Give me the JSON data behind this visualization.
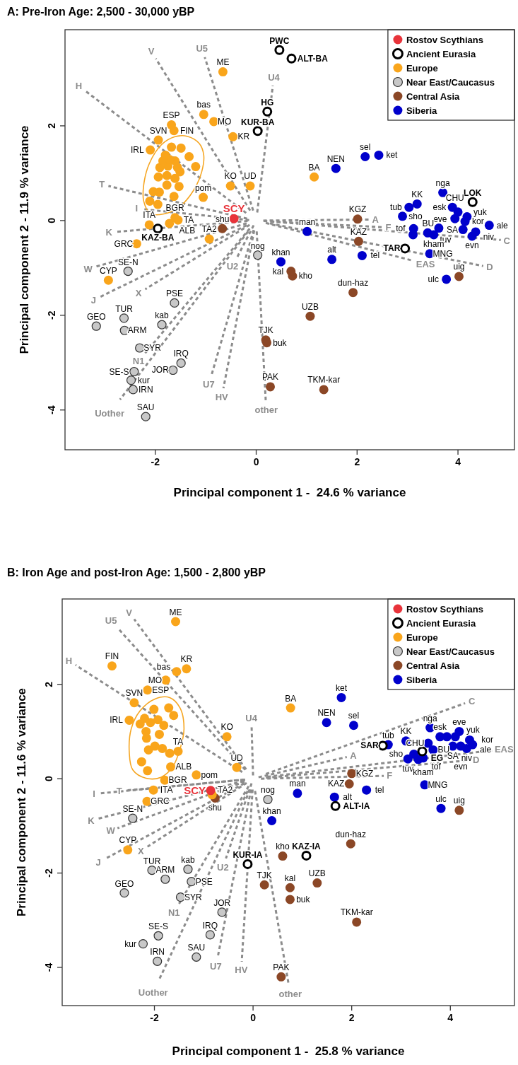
{
  "chart_data": [
    {
      "type": "scatter",
      "title": "A: Pre-Iron Age: 2,500 - 30,000 yBP",
      "xlabel": "Principal component 1 -  24.6 % variance",
      "ylabel": "Principal component 2 - 11.9 % variance",
      "xlim": [
        -3.79,
        5.12
      ],
      "ylim": [
        -4.84,
        4.03
      ],
      "xticks": [
        -2,
        0,
        2,
        4
      ],
      "yticks": [
        -4,
        -2,
        0,
        2
      ],
      "legend": "top right",
      "marker": "circle",
      "series": [
        {
          "type": "line",
          "marker": "none",
          "line_style": "dashed",
          "color": "#8c8c8c",
          "x": [
            -0.2,
            -3.39
          ],
          "values": [
            0.16,
            2.74
          ],
          "value_labels": [
            null,
            "H"
          ]
        },
        {
          "type": "line",
          "marker": "none",
          "line_style": "dashed",
          "color": "#8c8c8c",
          "x": [
            -0.12,
            -1.99
          ],
          "values": [
            0.21,
            3.42
          ],
          "value_labels": [
            null,
            "V"
          ]
        },
        {
          "type": "line",
          "marker": "none",
          "line_style": "dashed",
          "color": "#8c8c8c",
          "x": [
            -0.06,
            -1.02
          ],
          "values": [
            0.21,
            3.45
          ],
          "value_labels": [
            null,
            "U5"
          ]
        },
        {
          "type": "line",
          "marker": "none",
          "line_style": "dashed",
          "color": "#8c8c8c",
          "x": [
            0.02,
            0.33
          ],
          "values": [
            0.17,
            2.85
          ],
          "value_labels": [
            null,
            "U4"
          ]
        },
        {
          "type": "line",
          "marker": "none",
          "line_style": "dashed",
          "color": "#8c8c8c",
          "x": [
            -0.18,
            -2.93
          ],
          "values": [
            0.04,
            0.73
          ],
          "value_labels": [
            null,
            "T"
          ]
        },
        {
          "type": "line",
          "marker": "none",
          "line_style": "dashed",
          "color": "#8c8c8c",
          "x": [
            -0.14,
            -2.25
          ],
          "values": [
            0.01,
            0.24
          ],
          "value_labels": [
            null,
            "I"
          ]
        },
        {
          "type": "line",
          "marker": "none",
          "line_style": "dashed",
          "color": "#8c8c8c",
          "x": [
            -0.17,
            -2.8
          ],
          "values": [
            -0.01,
            -0.24
          ],
          "value_labels": [
            null,
            "K"
          ]
        },
        {
          "type": "line",
          "marker": "none",
          "line_style": "dashed",
          "color": "#8c8c8c",
          "x": [
            -0.19,
            -3.2
          ],
          "values": [
            -0.06,
            -0.98
          ],
          "value_labels": [
            null,
            "W"
          ]
        },
        {
          "type": "line",
          "marker": "none",
          "line_style": "dashed",
          "color": "#8c8c8c",
          "x": [
            -0.19,
            -3.09
          ],
          "values": [
            -0.1,
            -1.61
          ],
          "value_labels": [
            null,
            "J"
          ]
        },
        {
          "type": "line",
          "marker": "none",
          "line_style": "dashed",
          "color": "#8c8c8c",
          "x": [
            -0.13,
            -2.2
          ],
          "values": [
            -0.09,
            -1.45
          ],
          "value_labels": [
            null,
            "X"
          ]
        },
        {
          "type": "line",
          "marker": "none",
          "line_style": "dashed",
          "color": "#8c8c8c",
          "x": [
            -0.13,
            -2.2
          ],
          "values": [
            -0.17,
            -2.8
          ],
          "value_labels": [
            null,
            "N1"
          ]
        },
        {
          "type": "line",
          "marker": "none",
          "line_style": "dashed",
          "color": "#8c8c8c",
          "x": [
            -0.16,
            -2.7
          ],
          "values": [
            -0.23,
            -3.78
          ],
          "value_labels": [
            null,
            "Uother"
          ]
        },
        {
          "type": "line",
          "marker": "none",
          "line_style": "dashed",
          "color": "#8c8c8c",
          "x": [
            -0.05,
            -0.38
          ],
          "values": [
            -0.1,
            -0.78
          ],
          "value_labels": [
            null,
            "U2"
          ]
        },
        {
          "type": "line",
          "marker": "none",
          "line_style": "dashed",
          "color": "#8c8c8c",
          "x": [
            -0.05,
            -0.89
          ],
          "values": [
            -0.2,
            -3.28
          ],
          "value_labels": [
            null,
            "U7"
          ]
        },
        {
          "type": "line",
          "marker": "none",
          "line_style": "dashed",
          "color": "#8c8c8c",
          "x": [
            -0.04,
            -0.65
          ],
          "values": [
            -0.21,
            -3.54
          ],
          "value_labels": [
            null,
            "HV"
          ]
        },
        {
          "type": "line",
          "marker": "none",
          "line_style": "dashed",
          "color": "#8c8c8c",
          "x": [
            0.01,
            0.19
          ],
          "values": [
            -0.23,
            -3.82
          ],
          "value_labels": [
            null,
            "other"
          ]
        },
        {
          "type": "line",
          "marker": "none",
          "line_style": "dashed",
          "color": "#8c8c8c",
          "x": [
            0.14,
            2.25
          ],
          "values": [
            0,
            0.02
          ],
          "value_labels": [
            null,
            "A"
          ]
        },
        {
          "type": "line",
          "marker": "none",
          "line_style": "dashed",
          "color": "#8c8c8c",
          "x": [
            0.15,
            2.5
          ],
          "values": [
            -0.01,
            -0.14
          ],
          "value_labels": [
            null,
            "F"
          ]
        },
        {
          "type": "line",
          "marker": "none",
          "line_style": "dashed",
          "color": "#8c8c8c",
          "x": [
            0.19,
            3.12
          ],
          "values": [
            -0.05,
            -0.85
          ],
          "value_labels": [
            null,
            "EAS"
          ]
        },
        {
          "type": "line",
          "marker": "none",
          "line_style": "dashed",
          "color": "#8c8c8c",
          "x": [
            0.29,
            4.85
          ],
          "values": [
            -0.02,
            -0.41
          ],
          "value_labels": [
            null,
            "C"
          ]
        },
        {
          "type": "line",
          "marker": "none",
          "line_style": "dashed",
          "color": "#8c8c8c",
          "x": [
            0.27,
            4.5
          ],
          "values": [
            -0.06,
            -0.96
          ],
          "value_labels": [
            null,
            "D"
          ]
        },
        {
          "name": "Rostov Scythians",
          "color": "#e8333a",
          "x": [
            -0.44
          ],
          "values": [
            0.04
          ],
          "value_labels": [
            "SCY"
          ]
        },
        {
          "name": "Ancient Eurasia",
          "color": "#000000",
          "x": [
            0.46,
            0.7,
            0.22,
            0.03,
            -1.95,
            4.29,
            2.95
          ],
          "values": [
            3.6,
            3.42,
            2.3,
            1.89,
            -0.17,
            0.39,
            -0.59
          ],
          "value_labels": [
            "PWC",
            "ALT-BA",
            "HG",
            "KUR-BA",
            "KAZ-BA",
            "LOK",
            "TAR"
          ]
        },
        {
          "name": "Europe",
          "color": "#f9a51b",
          "x": [
            -0.66,
            -1.04,
            -0.84,
            -0.46,
            -1.68,
            -1.63,
            -1.94,
            -2.1,
            -0.51,
            -0.12,
            -1.05,
            -1.61,
            -1.55,
            -1.72,
            -2.12,
            -0.93,
            -2.37,
            -2.93,
            1.15,
            -1.68,
            -1.49,
            -1.33,
            -1.2,
            -1.8,
            -1.72,
            -1.85,
            -1.61,
            -1.91,
            -1.75,
            -1.56,
            -1.51,
            -1.94,
            -1.77,
            -1.61,
            -1.77,
            -1.53,
            -2.04,
            -1.92,
            -1.63,
            -2.11,
            -1.95
          ],
          "values": [
            3.14,
            2.24,
            2.09,
            1.77,
            2.02,
            1.9,
            1.7,
            1.49,
            0.73,
            0.73,
            0.49,
            0.06,
            0.01,
            -0.06,
            -0.09,
            -0.39,
            -0.49,
            -1.26,
            0.92,
            1.55,
            1.53,
            1.35,
            1.14,
            1.38,
            1.29,
            1.26,
            1.26,
            1.12,
            1.15,
            1.12,
            1.03,
            0.92,
            0.95,
            0.89,
            0.75,
            0.72,
            0.61,
            0.6,
            0.51,
            0.41,
            0.34
          ],
          "value_labels": [
            "ME",
            "bas",
            "MO",
            "KR",
            "ESP",
            "FIN",
            "SVN",
            "IRL",
            "KO",
            "UD",
            "pom",
            "BGR",
            "TA",
            "ALB",
            "ITA",
            "TA2",
            "GRC",
            "CYP",
            "BA",
            null,
            null,
            null,
            null,
            null,
            null,
            null,
            null,
            null,
            null,
            null,
            null,
            null,
            null,
            null,
            null,
            null,
            null,
            null,
            null,
            null,
            null
          ]
        },
        {
          "name": "Near East/Caucasus",
          "color": "#c8c8c8",
          "x": [
            0.03,
            -2.54,
            -1.62,
            -2.62,
            -3.17,
            -1.87,
            -2.61,
            -2.31,
            -1.49,
            -1.65,
            -2.42,
            -2.48,
            -2.44,
            -2.19
          ],
          "values": [
            -0.73,
            -1.07,
            -1.74,
            -2.06,
            -2.23,
            -2.2,
            -2.32,
            -2.69,
            -3.01,
            -3.16,
            -3.19,
            -3.37,
            -3.57,
            -4.14
          ],
          "value_labels": [
            "nog",
            "SE-N",
            "PSE",
            "TUR",
            "GEO",
            "kab",
            "ARM",
            "SYR",
            "IRQ",
            "JOR",
            "SE-S",
            "kur",
            "IRN",
            "SAU"
          ]
        },
        {
          "name": "Central Asia",
          "color": "#8b4726",
          "x": [
            -0.67,
            2.01,
            2.03,
            0.69,
            0.72,
            1.92,
            1.07,
            0.19,
            0.21,
            0.28,
            1.34,
            4.02
          ],
          "values": [
            -0.17,
            0.03,
            -0.44,
            -1.07,
            -1.17,
            -1.52,
            -2.02,
            -2.52,
            -2.58,
            -3.51,
            -3.57,
            -1.18
          ],
          "value_labels": [
            "shu",
            "KGZ",
            "KAZ",
            "kal",
            "kho",
            "dun-haz",
            "UZB",
            "TJK",
            "buk",
            "PAK",
            "TKM-kar",
            "uig"
          ]
        },
        {
          "name": "Siberia",
          "color": "#0000cc",
          "x": [
            2.16,
            2.43,
            1.58,
            3.7,
            3.03,
            3.19,
            2.9,
            3.89,
            4.0,
            3.94,
            4.18,
            4.14,
            4.62,
            4.1,
            4.28,
            4.35,
            3.62,
            3.4,
            3.52,
            3.12,
            3.11,
            1.01,
            3.44,
            1.5,
            2.1,
            0.49,
            3.77
          ],
          "values": [
            1.35,
            1.38,
            1.1,
            0.59,
            0.28,
            0.35,
            0.09,
            0.28,
            0.18,
            0.04,
            0.08,
            -0.02,
            -0.1,
            -0.19,
            -0.33,
            -0.24,
            -0.16,
            -0.26,
            -0.3,
            -0.17,
            -0.3,
            -0.23,
            -0.7,
            -0.82,
            -0.74,
            -0.87,
            -1.24
          ],
          "value_labels": [
            "sel",
            "ket",
            "NEN",
            "nga",
            "tub",
            "KK",
            "sho",
            "esk",
            "eve",
            "CHU",
            "yuk",
            "kor",
            "ale",
            "SA",
            "evn",
            "niv",
            "BU",
            "tuv",
            "kham",
            "tof",
            null,
            "man",
            "MNG",
            "alt",
            "tel",
            "khan",
            "ulc"
          ]
        }
      ]
    },
    {
      "type": "scatter",
      "title": "B: Iron Age and post-Iron Age: 1,500 - 2,800 yBP",
      "xlabel": "Principal component 1 -  25.8 % variance",
      "ylabel": "Principal component 2 - 11.6 % variance",
      "xlim": [
        -3.87,
        5.3
      ],
      "ylim": [
        -4.81,
        3.81
      ],
      "xticks": [
        -2,
        0,
        2,
        4
      ],
      "yticks": [
        -4,
        -2,
        0,
        2
      ],
      "legend": "top right",
      "marker": "circle",
      "series": [
        {
          "type": "line",
          "marker": "none",
          "line_style": "dashed",
          "color": "#8c8c8c",
          "x": [
            -0.16,
            -2.74
          ],
          "values": [
            0.19,
            3.19
          ],
          "value_labels": [
            null,
            "U5"
          ]
        },
        {
          "type": "line",
          "marker": "none",
          "line_style": "dashed",
          "color": "#8c8c8c",
          "x": [
            -0.14,
            -2.41
          ],
          "values": [
            0.2,
            3.38
          ],
          "value_labels": [
            null,
            "V"
          ]
        },
        {
          "type": "line",
          "marker": "none",
          "line_style": "dashed",
          "color": "#8c8c8c",
          "x": [
            -0.22,
            -3.6
          ],
          "values": [
            0.14,
            2.41
          ],
          "value_labels": [
            null,
            "H"
          ]
        },
        {
          "type": "line",
          "marker": "none",
          "line_style": "dashed",
          "color": "#8c8c8c",
          "x": [
            0,
            -0.03
          ],
          "values": [
            0.07,
            1.12
          ],
          "value_labels": [
            null,
            "U4"
          ]
        },
        {
          "type": "line",
          "marker": "none",
          "line_style": "dashed",
          "color": "#8c8c8c",
          "x": [
            -0.16,
            -2.59
          ],
          "values": [
            -0.02,
            -0.25
          ],
          "value_labels": [
            null,
            "T"
          ]
        },
        {
          "type": "line",
          "marker": "none",
          "line_style": "dashed",
          "color": "#8c8c8c",
          "x": [
            -0.19,
            -3.1
          ],
          "values": [
            -0.02,
            -0.31
          ],
          "value_labels": [
            null,
            "I"
          ]
        },
        {
          "type": "line",
          "marker": "none",
          "line_style": "dashed",
          "color": "#8c8c8c",
          "x": [
            -0.19,
            -3.15
          ],
          "values": [
            -0.05,
            -0.85
          ],
          "value_labels": [
            null,
            "K"
          ]
        },
        {
          "type": "line",
          "marker": "none",
          "line_style": "dashed",
          "color": "#8c8c8c",
          "x": [
            -0.17,
            -2.75
          ],
          "values": [
            -0.06,
            -1.05
          ],
          "value_labels": [
            null,
            "W"
          ]
        },
        {
          "type": "line",
          "marker": "none",
          "line_style": "dashed",
          "color": "#8c8c8c",
          "x": [
            -0.18,
            -3.0
          ],
          "values": [
            -0.1,
            -1.7
          ],
          "value_labels": [
            null,
            "J"
          ]
        },
        {
          "type": "line",
          "marker": "none",
          "line_style": "dashed",
          "color": "#8c8c8c",
          "x": [
            -0.13,
            -2.14
          ],
          "values": [
            -0.09,
            -1.44
          ],
          "value_labels": [
            null,
            "X"
          ]
        },
        {
          "type": "line",
          "marker": "none",
          "line_style": "dashed",
          "color": "#8c8c8c",
          "x": [
            -0.03,
            -0.55
          ],
          "values": [
            -0.1,
            -1.69
          ],
          "value_labels": [
            null,
            "U2"
          ]
        },
        {
          "type": "line",
          "marker": "none",
          "line_style": "dashed",
          "color": "#8c8c8c",
          "x": [
            -0.09,
            -1.5
          ],
          "values": [
            -0.16,
            -2.65
          ],
          "value_labels": [
            null,
            "N1"
          ]
        },
        {
          "type": "line",
          "marker": "none",
          "line_style": "dashed",
          "color": "#8c8c8c",
          "x": [
            -0.04,
            -0.72
          ],
          "values": [
            -0.23,
            -3.8
          ],
          "value_labels": [
            null,
            "U7"
          ]
        },
        {
          "type": "line",
          "marker": "none",
          "line_style": "dashed",
          "color": "#8c8c8c",
          "x": [
            -0.01,
            -0.23
          ],
          "values": [
            -0.23,
            -3.88
          ],
          "value_labels": [
            null,
            "HV"
          ]
        },
        {
          "type": "line",
          "marker": "none",
          "line_style": "dashed",
          "color": "#8c8c8c",
          "x": [
            -0.11,
            -1.9
          ],
          "values": [
            -0.26,
            -4.25
          ],
          "value_labels": [
            null,
            "Uother"
          ]
        },
        {
          "type": "line",
          "marker": "none",
          "line_style": "dashed",
          "color": "#8c8c8c",
          "x": [
            0.04,
            0.72
          ],
          "values": [
            -0.26,
            -4.35
          ],
          "value_labels": [
            null,
            "other"
          ]
        },
        {
          "type": "line",
          "marker": "none",
          "line_style": "dashed",
          "color": "#8c8c8c",
          "x": [
            0.11,
            1.9
          ],
          "values": [
            0.03,
            0.46
          ],
          "value_labels": [
            null,
            "A"
          ]
        },
        {
          "type": "line",
          "marker": "none",
          "line_style": "dashed",
          "color": "#8c8c8c",
          "x": [
            0.16,
            2.65
          ],
          "values": [
            0,
            0.06
          ],
          "value_labels": [
            null,
            "F"
          ]
        },
        {
          "type": "line",
          "marker": "none",
          "line_style": "dashed",
          "color": "#8c8c8c",
          "x": [
            0.29,
            4.85
          ],
          "values": [
            0.04,
            0.6
          ],
          "value_labels": [
            null,
            "EAS"
          ]
        },
        {
          "type": "line",
          "marker": "none",
          "line_style": "dashed",
          "color": "#8c8c8c",
          "x": [
            0.26,
            4.4
          ],
          "values": [
            0.02,
            0.39
          ],
          "value_labels": [
            null,
            "D"
          ]
        },
        {
          "type": "line",
          "marker": "none",
          "line_style": "dashed",
          "color": "#8c8c8c",
          "x": [
            0.26,
            4.3
          ],
          "values": [
            0.1,
            1.6
          ],
          "value_labels": [
            null,
            "C"
          ]
        },
        {
          "name": "Rostov Scythians",
          "color": "#e8333a",
          "x": [
            -0.86
          ],
          "values": [
            -0.25
          ],
          "value_labels": [
            "SCY"
          ]
        },
        {
          "name": "Ancient Eurasia",
          "color": "#000000",
          "x": [
            -0.11,
            1.67,
            1.08,
            2.63,
            3.43
          ],
          "values": [
            -1.81,
            -0.58,
            -1.63,
            0.7,
            0.58
          ],
          "value_labels": [
            "KUR-IA",
            "ALT-IA",
            "KAZ-IA",
            "SAR",
            "EG"
          ]
        },
        {
          "name": "Europe",
          "color": "#f9a51b",
          "x": [
            -1.57,
            -2.86,
            -1.55,
            -1.35,
            -1.77,
            -2.14,
            -2.41,
            -2.51,
            -0.53,
            -1.52,
            -0.33,
            -1.67,
            -1.15,
            -1.79,
            -2.02,
            -2.15,
            -0.83,
            -2.54,
            0.76,
            -2.01,
            -1.71,
            -1.61,
            -2.2,
            -1.93,
            -2.29,
            -2.08,
            -1.81,
            -2.17,
            -1.9,
            -2.16,
            -2.12,
            -1.99,
            -1.84,
            -1.69,
            -2.26,
            -2.14
          ],
          "values": [
            3.33,
            2.39,
            2.27,
            2.33,
            2.09,
            1.88,
            1.61,
            1.24,
            0.89,
            0.58,
            0.24,
            0.25,
            0.08,
            -0.03,
            -0.24,
            -0.48,
            -0.34,
            -1.51,
            1.5,
            1.47,
            1.5,
            1.34,
            1.28,
            1.25,
            1.16,
            1.19,
            1.13,
            1.0,
            0.94,
            0.86,
            0.61,
            0.69,
            0.64,
            0.54,
            0.36,
            0.17
          ],
          "value_labels": [
            "ME",
            "FIN",
            "bas",
            "KR",
            "MO",
            "ESP",
            "SVN",
            "IRL",
            "KO",
            "TA",
            "UD",
            "ALB",
            "pom",
            "BGR",
            "ITA",
            "GRC",
            "TA2",
            "CYP",
            "BA",
            null,
            null,
            null,
            null,
            null,
            null,
            null,
            null,
            null,
            null,
            null,
            null,
            null,
            null,
            null,
            null,
            null
          ]
        },
        {
          "name": "Near East/Caucasus",
          "color": "#c8c8c8",
          "x": [
            0.3,
            -2.44,
            -2.05,
            -1.32,
            -1.78,
            -1.25,
            -2.61,
            -1.47,
            -0.63,
            -1.92,
            -0.87,
            -2.23,
            -1.15,
            -1.94
          ],
          "values": [
            -0.44,
            -0.84,
            -1.94,
            -1.92,
            -2.13,
            -2.18,
            -2.42,
            -2.51,
            -2.83,
            -3.33,
            -3.31,
            -3.5,
            -3.78,
            -3.87
          ],
          "value_labels": [
            "nog",
            "SE-N",
            "TUR",
            "kab",
            "ARM",
            "PSE",
            "GEO",
            "SYR",
            "JOR",
            "SE-S",
            "IRQ",
            "kur",
            "SAU",
            "IRN"
          ]
        },
        {
          "name": "Central Asia",
          "color": "#8b4726",
          "x": [
            -0.77,
            2.0,
            1.95,
            1.98,
            0.6,
            0.23,
            0.75,
            1.3,
            0.75,
            2.1,
            0.57,
            4.18
          ],
          "values": [
            -0.41,
            0.11,
            -0.11,
            -1.38,
            -1.64,
            -2.25,
            -2.31,
            -2.21,
            -2.56,
            -3.04,
            -4.2,
            -0.67
          ],
          "value_labels": [
            "shu",
            "KGZ",
            "KAZ",
            "dun-haz",
            "kho",
            "TJK",
            "kal",
            "UZB",
            "buk",
            "TKM-kar",
            "PAK",
            "uig"
          ]
        },
        {
          "name": "Siberia",
          "color": "#0000cc",
          "x": [
            1.79,
            1.49,
            2.04,
            2.74,
            3.1,
            3.59,
            3.79,
            3.93,
            4.18,
            4.1,
            4.39,
            4.45,
            3.26,
            3.14,
            3.35,
            3.45,
            3.65,
            3.55,
            4.05,
            4.21,
            4.33,
            3.48,
            2.3,
            0.9,
            1.65,
            0.38,
            3.81
          ],
          "values": [
            1.72,
            1.19,
            1.13,
            0.72,
            0.8,
            1.08,
            0.89,
            0.89,
            1.0,
            0.89,
            0.82,
            0.72,
            0.52,
            0.42,
            0.41,
            0.44,
            0.61,
            0.75,
            0.69,
            0.69,
            0.64,
            -0.13,
            -0.24,
            -0.31,
            -0.39,
            -0.89,
            -0.63
          ],
          "value_labels": [
            "ket",
            "NEN",
            "sel",
            "tub",
            "KK",
            "nga",
            "esk",
            null,
            "eve",
            "yuk",
            "kor",
            "ale",
            "sho",
            "tuv",
            "tof",
            "kham",
            "BU",
            "CHU",
            "SA",
            "evn",
            "niv",
            "MNG",
            "tel",
            "man",
            "alt",
            "khan",
            "ulc"
          ]
        }
      ]
    }
  ]
}
